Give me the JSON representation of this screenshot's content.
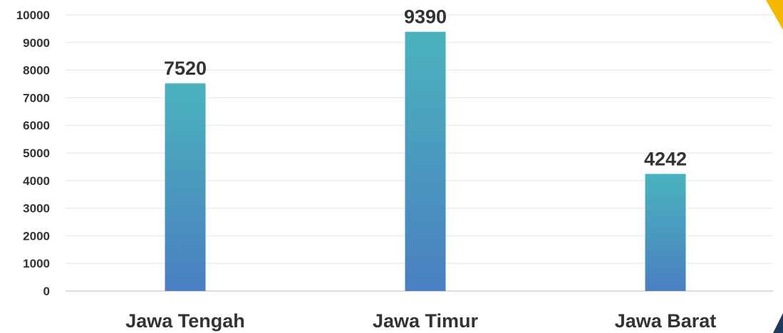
{
  "chart_data": {
    "type": "bar",
    "categories": [
      "Jawa Tengah",
      "Jawa Timur",
      "Jawa Barat"
    ],
    "values": [
      7520,
      9390,
      4242
    ],
    "data_labels": [
      "7520",
      "9390",
      "4242"
    ],
    "title": "",
    "xlabel": "",
    "ylabel": "",
    "ylim": [
      0,
      10000
    ],
    "yticks": [
      0,
      1000,
      2000,
      3000,
      4000,
      5000,
      6000,
      7000,
      8000,
      9000,
      10000
    ],
    "ytick_labels": [
      "0",
      "1000",
      "2000",
      "3000",
      "4000",
      "5000",
      "6000",
      "7000",
      "8000",
      "9000",
      "10000"
    ],
    "grid": true,
    "legend": "none",
    "colors": {
      "bar_top": "#4ab3bd",
      "bar_bottom": "#4a7fc1",
      "grid": "#e6e6e6",
      "text": "#333333",
      "corner_accent_yellow": "#f5b800",
      "corner_accent_navy": "#1f3a5c"
    }
  }
}
